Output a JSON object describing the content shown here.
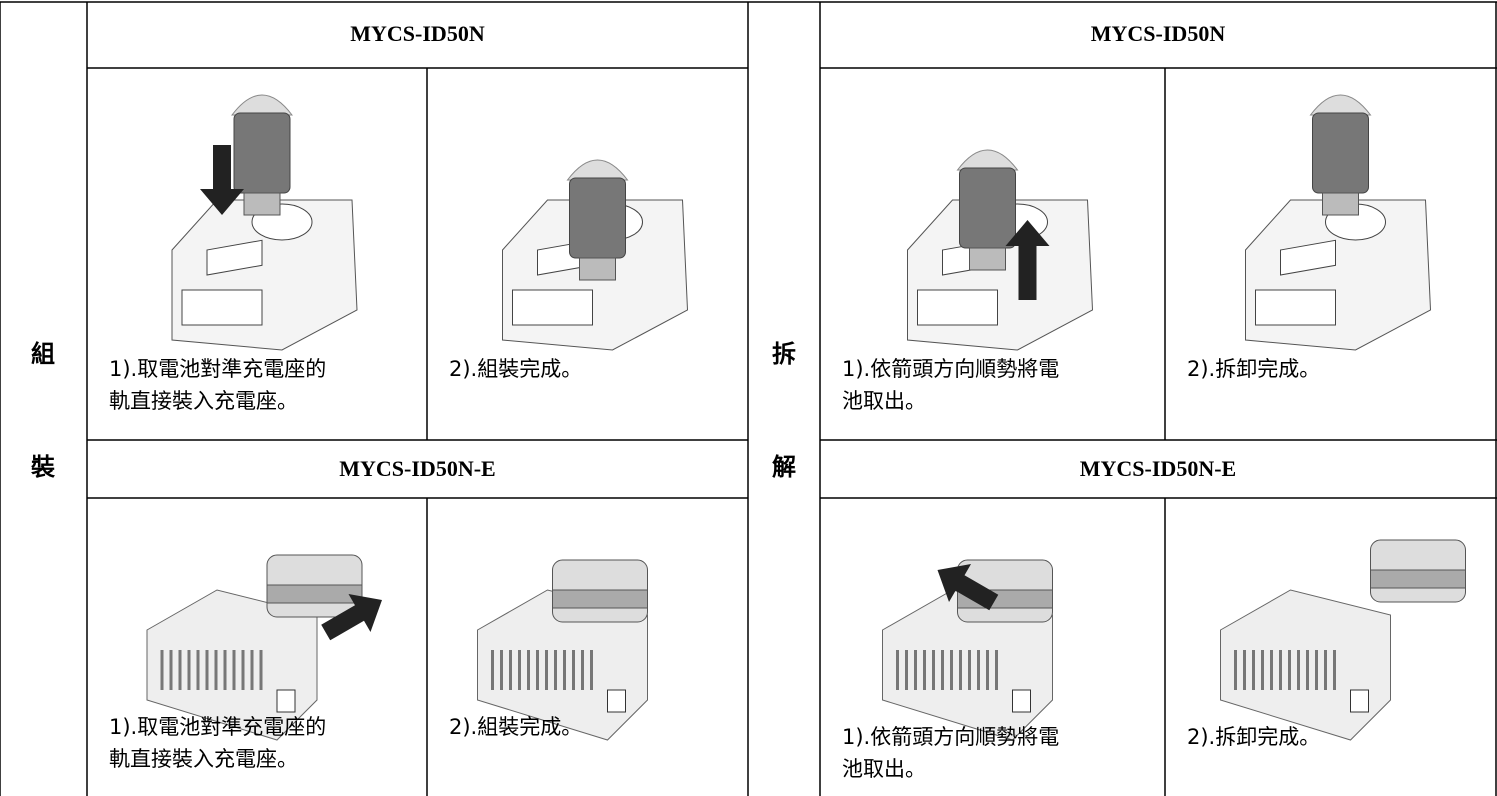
{
  "sections": [
    {
      "label": [
        "組",
        "裝"
      ],
      "blocks": [
        {
          "model": "MYCS-ID50N",
          "steps": [
            [
              "1).取電池對準充電座的",
              "軌直接裝入充電座。"
            ],
            [
              "2).組裝完成。"
            ]
          ]
        },
        {
          "model": "MYCS-ID50N-E",
          "steps": [
            [
              "1).取電池對準充電座的",
              "軌直接裝入充電座。"
            ],
            [
              "2).組裝完成。"
            ]
          ]
        }
      ]
    },
    {
      "label": [
        "拆",
        "解"
      ],
      "blocks": [
        {
          "model": "MYCS-ID50N",
          "steps": [
            [
              "1).依箭頭方向順勢將電",
              "池取出。"
            ],
            [
              "2).拆卸完成。"
            ]
          ]
        },
        {
          "model": "MYCS-ID50N-E",
          "steps": [
            [
              "1).依箭頭方向順勢將電",
              "池取出。"
            ],
            [
              "2).拆卸完成。"
            ]
          ]
        }
      ]
    }
  ]
}
